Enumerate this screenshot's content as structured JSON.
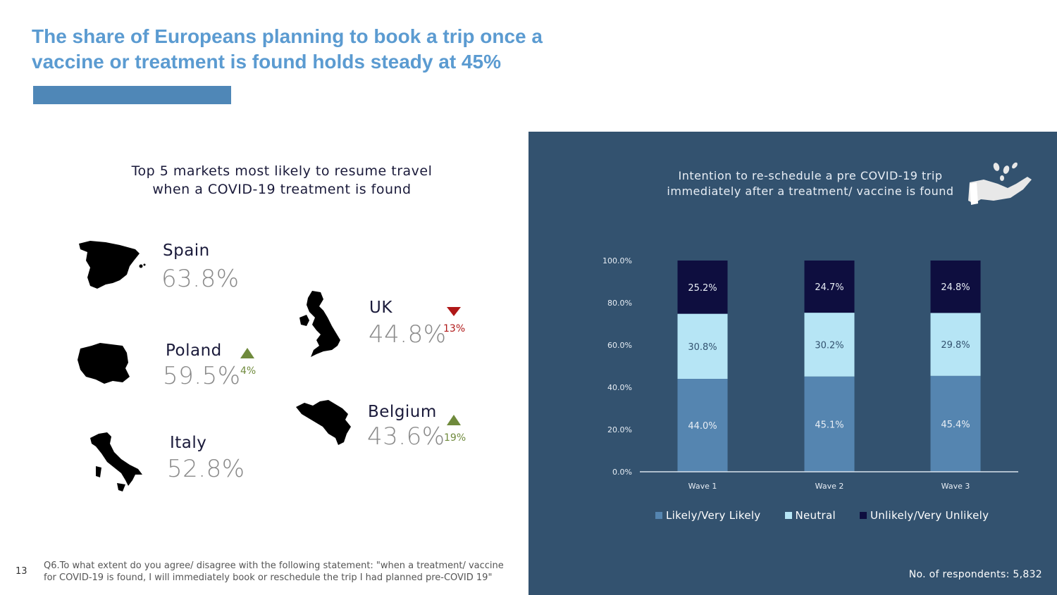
{
  "title": "The share of Europeans planning to book a trip once a vaccine or treatment is found holds steady at 45%",
  "left_subtitle_line1": "Top 5 markets most likely to resume travel",
  "left_subtitle_line2": "when a COVID-19 treatment is found",
  "markets": {
    "spain": {
      "name": "Spain",
      "pct": "63.8%"
    },
    "poland": {
      "name": "Poland",
      "pct": "59.5%",
      "change": "4%",
      "direction": "up"
    },
    "italy": {
      "name": "Italy",
      "pct": "52.8%"
    },
    "uk": {
      "name": "UK",
      "pct": "44.8%",
      "change": "13%",
      "direction": "down"
    },
    "belgium": {
      "name": "Belgium",
      "pct": "43.6%",
      "change": "19%",
      "direction": "up"
    }
  },
  "footnote_line1": "Q6.To what extent do you agree/ disagree with the following statement: \"when a treatment/ vaccine",
  "footnote_line2": "for COVID-19 is found, I will immediately book or reschedule the trip I had planned pre-COVID 19\"",
  "page_number": "13",
  "respondents": "No. of respondents: 5,832",
  "colors": {
    "panel": "#33526f",
    "likely": "#5585b0",
    "neutral": "#b6e5f5",
    "unlikely": "#0e0e3f",
    "up": "#6f8a3c",
    "down": "#b01818",
    "title": "#5b9bd1"
  },
  "icons": {
    "hand": "hand-dropping-coins-icon"
  },
  "chart_data": {
    "type": "bar",
    "stacked": true,
    "title": "Intention to re-schedule a pre COVID-19 trip immediately after a treatment/ vaccine is found",
    "title_line1": "Intention to re-schedule  a pre COVID-19 trip",
    "title_line2": "immediately after a treatment/ vaccine is found",
    "categories": [
      "Wave 1",
      "Wave 2",
      "Wave 3"
    ],
    "series": [
      {
        "name": "Likely/Very Likely",
        "values": [
          44.0,
          45.1,
          45.4
        ],
        "labels": [
          "44.0%",
          "45.1%",
          "45.4%"
        ]
      },
      {
        "name": "Neutral",
        "values": [
          30.8,
          30.2,
          29.8
        ],
        "labels": [
          "30.8%",
          "30.2%",
          "29.8%"
        ]
      },
      {
        "name": "Unlikely/Very Unlikely",
        "values": [
          25.2,
          24.7,
          24.8
        ],
        "labels": [
          "25.2%",
          "24.7%",
          "24.8%"
        ]
      }
    ],
    "ylim": [
      0,
      100
    ],
    "yticks": [
      "0.0%",
      "20.0%",
      "40.0%",
      "60.0%",
      "80.0%",
      "100.0%"
    ],
    "grid": false,
    "legend": "bottom"
  }
}
